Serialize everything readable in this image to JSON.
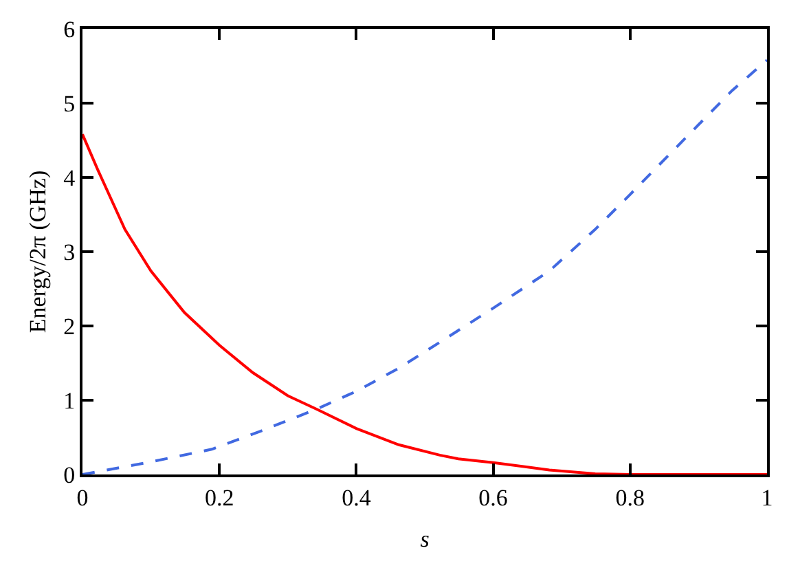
{
  "chart_data": {
    "type": "line",
    "xlabel": "s",
    "ylabel": "Energy/2π (GHz)",
    "xlim": [
      0,
      1
    ],
    "ylim": [
      0,
      6
    ],
    "xticks": [
      0,
      0.2,
      0.4,
      0.6,
      0.8,
      1
    ],
    "yticks": [
      0,
      1,
      2,
      3,
      4,
      5,
      6
    ],
    "legend": false,
    "series": [
      {
        "color": "#ff0000",
        "line_style": "solid",
        "x": [
          0,
          0.022,
          0.062,
          0.1,
          0.149,
          0.2,
          0.249,
          0.3,
          0.342,
          0.4,
          0.462,
          0.522,
          0.549,
          0.6,
          0.682,
          0.749,
          0.8,
          0.9,
          1
        ],
        "values": [
          4.58,
          4.11,
          3.3,
          2.74,
          2.18,
          1.74,
          1.37,
          1.06,
          0.88,
          0.62,
          0.4,
          0.26,
          0.21,
          0.16,
          0.06,
          0.01,
          0,
          0,
          0
        ]
      },
      {
        "color": "#4169e1",
        "line_style": "dashed",
        "x": [
          0,
          0.095,
          0.189,
          0.262,
          0.342,
          0.4,
          0.462,
          0.522,
          0.6,
          0.682,
          0.749,
          0.8,
          0.883,
          0.949,
          1
        ],
        "values": [
          0,
          0.16,
          0.34,
          0.59,
          0.88,
          1.12,
          1.43,
          1.78,
          2.24,
          2.74,
          3.3,
          3.77,
          4.55,
          5.17,
          5.58
        ]
      }
    ]
  }
}
